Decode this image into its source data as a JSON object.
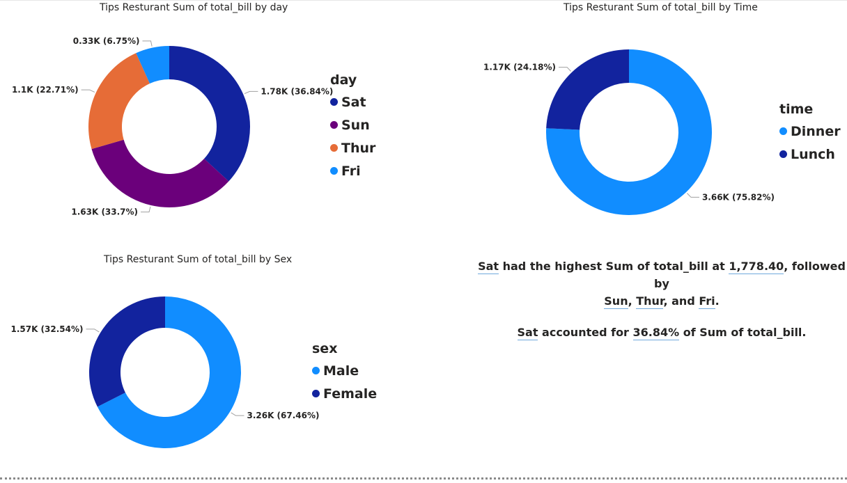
{
  "chart_data": [
    {
      "type": "donut",
      "title": "Tips Resturant Sum of total_bill by day",
      "legend_title": "day",
      "legend_position": "right",
      "categories": [
        "Sat",
        "Sun",
        "Thur",
        "Fri"
      ],
      "values": [
        1778.4,
        1627.16,
        1096.33,
        325.88
      ],
      "percents": [
        36.84,
        33.7,
        22.71,
        6.75
      ],
      "labels": [
        "1.78K (36.84%)",
        "1.63K (33.7%)",
        "1.1K (22.71%)",
        "0.33K (6.75%)"
      ],
      "colors": [
        "#12239E",
        "#6B007B",
        "#E66C37",
        "#118DFF"
      ]
    },
    {
      "type": "donut",
      "title": "Tips Resturant Sum of total_bill by Time",
      "legend_title": "time",
      "legend_position": "right",
      "categories": [
        "Dinner",
        "Lunch"
      ],
      "values": [
        3660,
        1170
      ],
      "percents": [
        75.82,
        24.18
      ],
      "labels": [
        "3.66K (75.82%)",
        "1.17K (24.18%)"
      ],
      "colors": [
        "#118DFF",
        "#12239E"
      ]
    },
    {
      "type": "donut",
      "title": "Tips Resturant Sum of total_bill by Sex",
      "legend_title": "sex",
      "legend_position": "right",
      "categories": [
        "Male",
        "Female"
      ],
      "values": [
        3260,
        1570
      ],
      "percents": [
        67.46,
        32.54
      ],
      "labels": [
        "3.26K (67.46%)",
        "1.57K (32.54%)"
      ],
      "colors": [
        "#118DFF",
        "#12239E"
      ]
    }
  ],
  "narrative": {
    "p1": {
      "a": "Sat",
      "b": " had the highest Sum of total_bill at ",
      "c": "1,778.40",
      "d": ", followed by ",
      "e": "Sun",
      "f": ", ",
      "g": "Thur",
      "h": ", and ",
      "i": "Fri",
      "j": "."
    },
    "p2": {
      "a": "Sat",
      "b": " accounted for ",
      "c": "36.84%",
      "d": " of Sum of total_bill."
    }
  }
}
